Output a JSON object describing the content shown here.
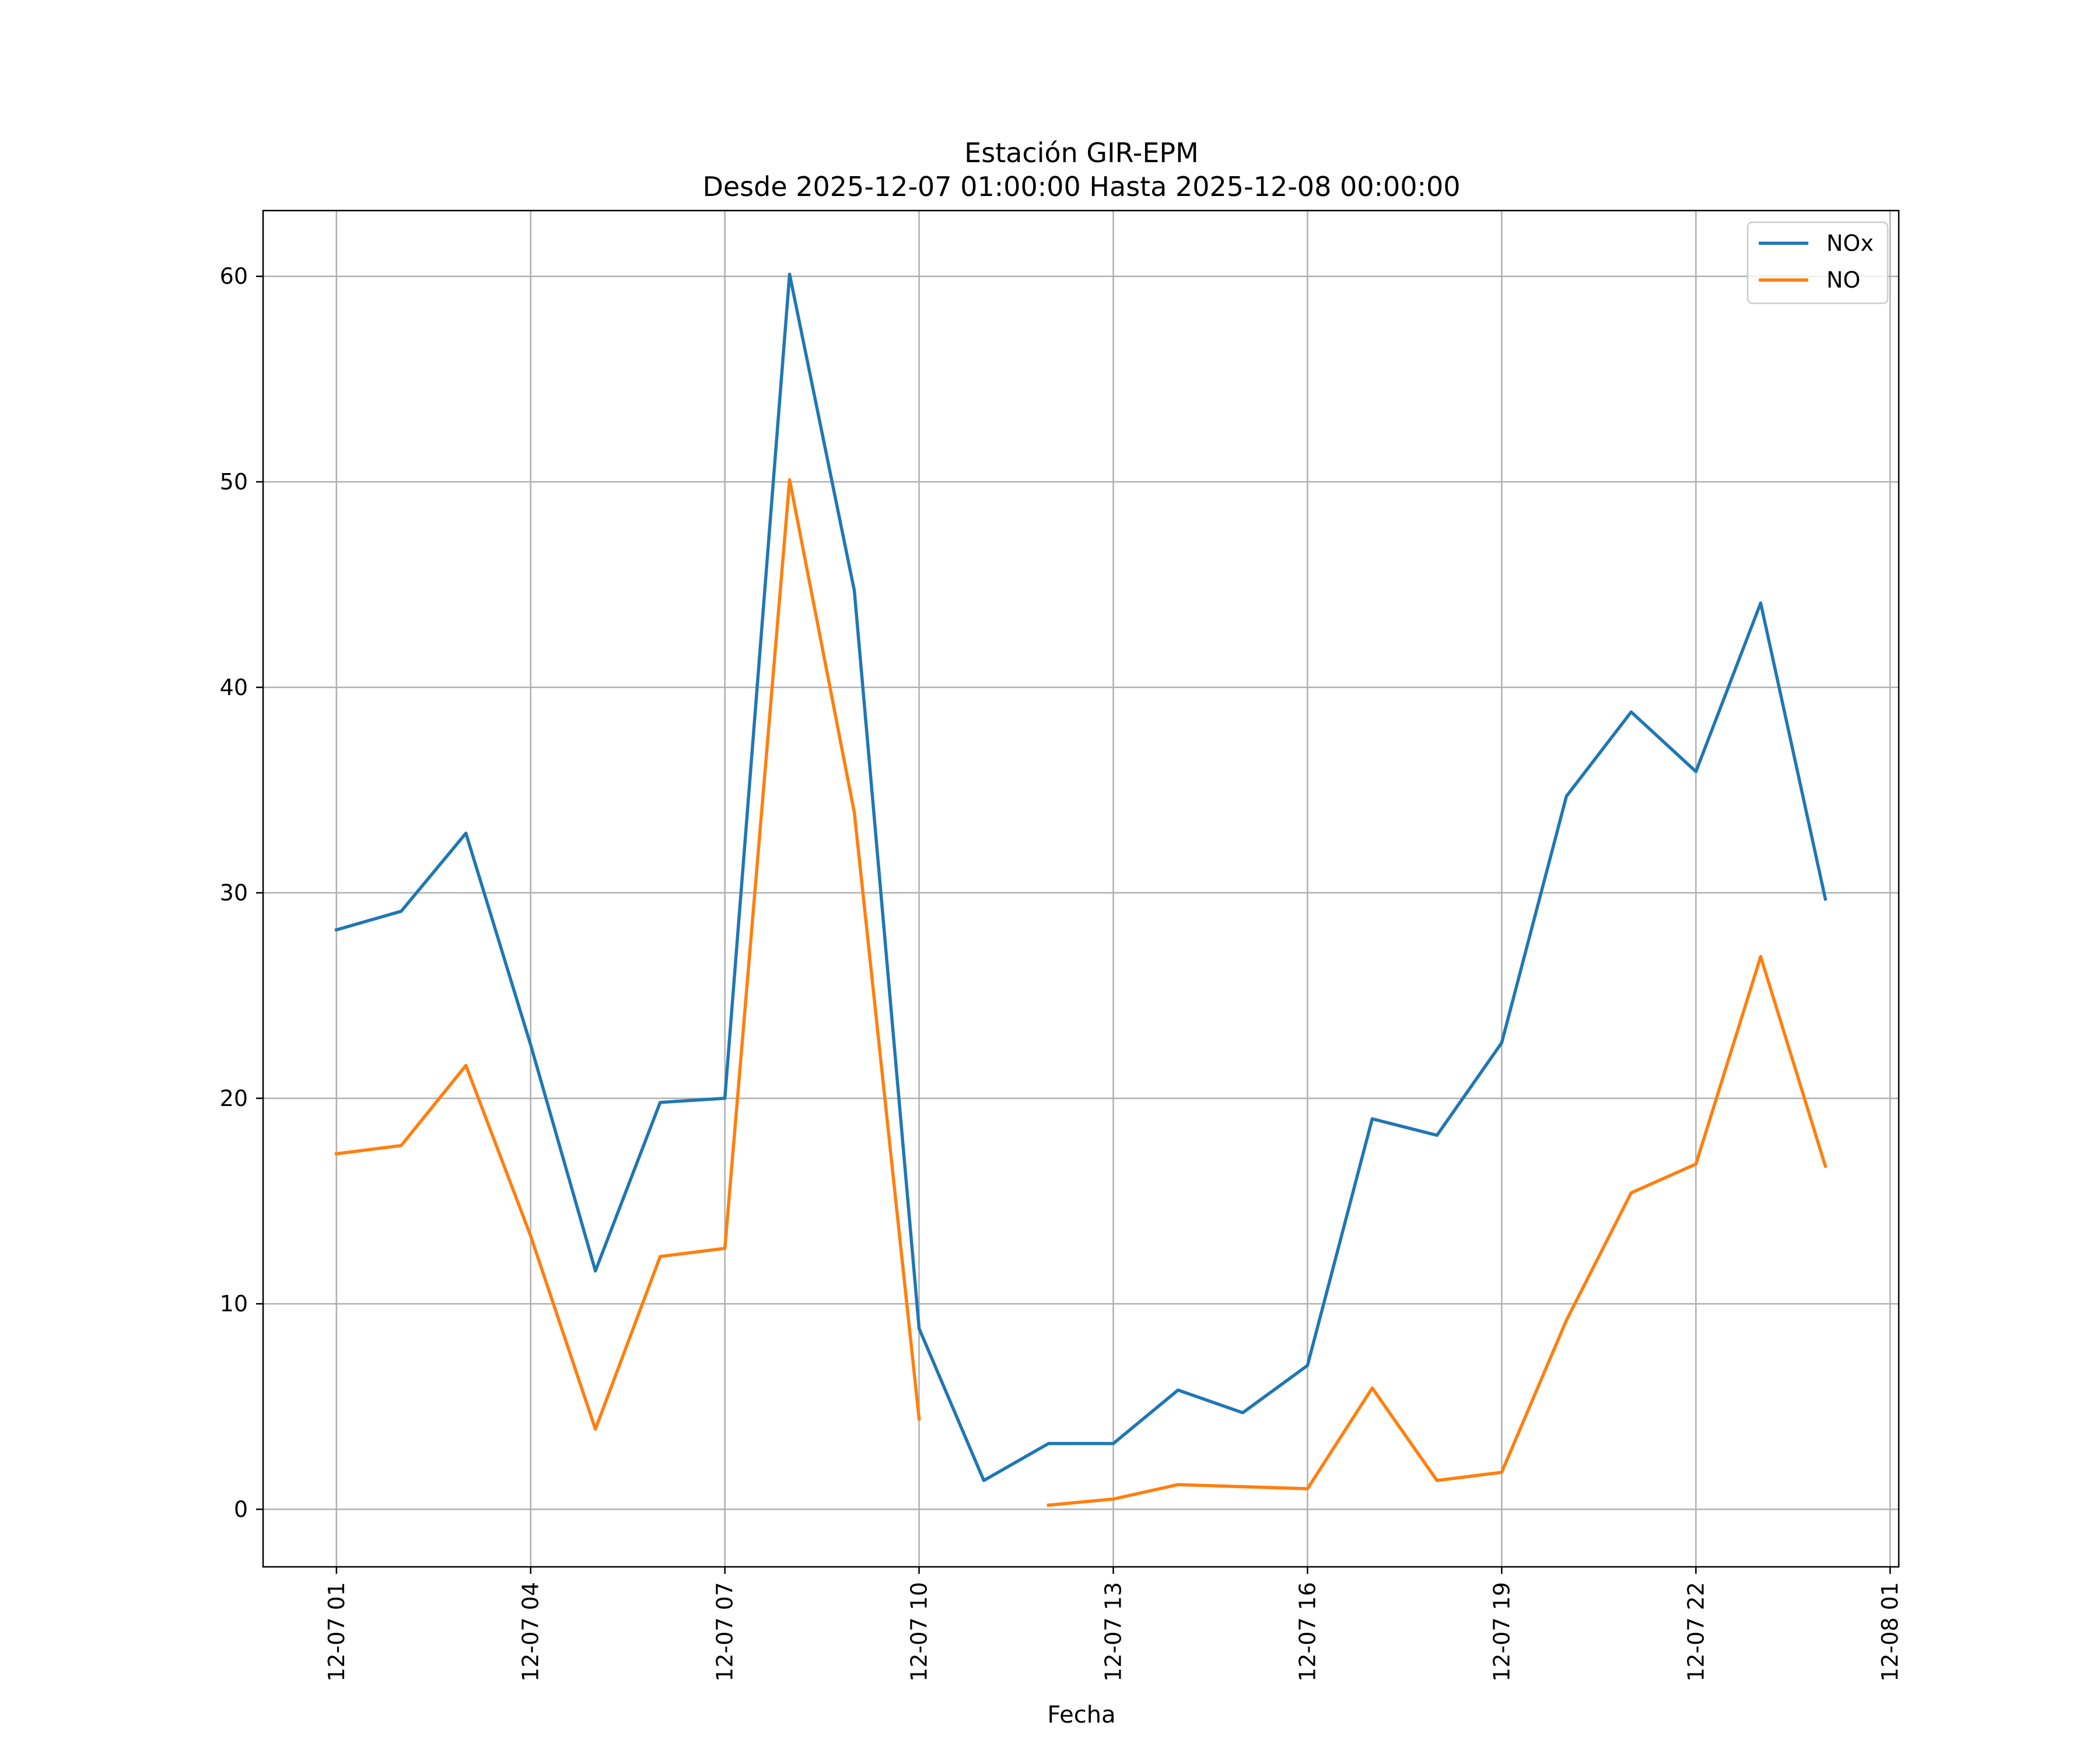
{
  "chart_data": {
    "type": "line",
    "title": "Estación GIR-EPM",
    "subtitle": "Desde 2025-12-07 01:00:00 Hasta 2025-12-08 00:00:00",
    "xlabel": "Fecha",
    "ylabel": "",
    "grid": true,
    "legend_position": "top-right",
    "x_ticks": [
      "2025-12-07 01:00",
      "2025-12-07 04:00",
      "2025-12-07 07:00",
      "2025-12-07 10:00",
      "2025-12-07 13:00",
      "2025-12-07 16:00",
      "2025-12-07 19:00",
      "2025-12-07 22:00",
      "2025-12-08 01:00"
    ],
    "x_tick_labels": [
      "12-07 01",
      "12-07 04",
      "12-07 07",
      "12-07 10",
      "12-07 13",
      "12-07 16",
      "12-07 19",
      "12-07 22",
      "12-08 01"
    ],
    "xlim": [
      "2025-12-06 23:52",
      "2025-12-08 01:08"
    ],
    "y_ticks": [
      0,
      10,
      20,
      30,
      40,
      50,
      60
    ],
    "ylim": [
      -2.8,
      63.2
    ],
    "x": [
      "2025-12-07 01:00",
      "2025-12-07 02:00",
      "2025-12-07 03:00",
      "2025-12-07 04:00",
      "2025-12-07 05:00",
      "2025-12-07 06:00",
      "2025-12-07 07:00",
      "2025-12-07 08:00",
      "2025-12-07 09:00",
      "2025-12-07 10:00",
      "2025-12-07 11:00",
      "2025-12-07 12:00",
      "2025-12-07 13:00",
      "2025-12-07 14:00",
      "2025-12-07 15:00",
      "2025-12-07 16:00",
      "2025-12-07 17:00",
      "2025-12-07 18:00",
      "2025-12-07 19:00",
      "2025-12-07 20:00",
      "2025-12-07 21:00",
      "2025-12-07 22:00",
      "2025-12-07 23:00",
      "2025-12-08 00:00"
    ],
    "series": [
      {
        "name": "NOx",
        "color": "#1f77b4",
        "values": [
          28.2,
          29.1,
          32.9,
          22.6,
          11.6,
          19.8,
          20.0,
          60.1,
          44.7,
          8.8,
          1.4,
          3.2,
          3.2,
          5.8,
          4.7,
          7.0,
          19.0,
          18.2,
          22.7,
          34.7,
          38.8,
          35.9,
          44.1,
          29.7
        ]
      },
      {
        "name": "NO",
        "color": "#ff7f0e",
        "values": [
          17.3,
          17.7,
          21.6,
          13.3,
          3.9,
          12.3,
          12.7,
          50.1,
          33.9,
          4.4,
          null,
          0.2,
          0.5,
          1.2,
          1.1,
          1.0,
          5.9,
          1.4,
          1.8,
          9.2,
          15.4,
          16.8,
          26.9,
          16.7
        ]
      }
    ]
  }
}
